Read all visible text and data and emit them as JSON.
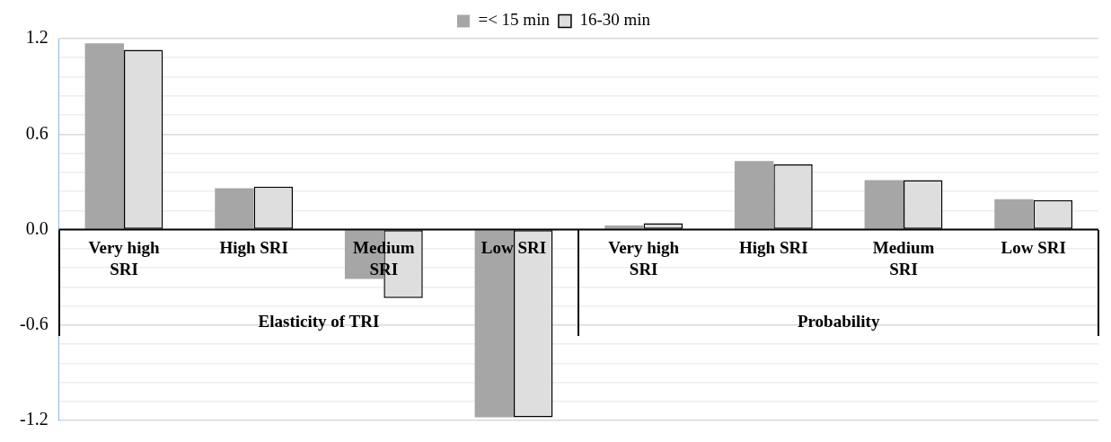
{
  "chart_data": {
    "type": "bar",
    "categories": [
      "Very high SRI",
      "High SRI",
      "Medium SRI",
      "Low SRI",
      "Very high SRI",
      "High SRI",
      "Medium SRI",
      "Low SRI"
    ],
    "series": [
      {
        "name": "=< 15 min",
        "color": "#a6a6a6",
        "values": [
          1.17,
          0.26,
          -0.31,
          -1.18,
          0.025,
          0.43,
          0.31,
          0.19
        ]
      },
      {
        "name": "16-30 min",
        "color": "#dedede",
        "values": [
          1.13,
          0.27,
          -0.43,
          -1.18,
          0.04,
          0.41,
          0.31,
          0.185
        ]
      }
    ],
    "annotations": [
      "Elasticity of TRI",
      "Probability"
    ],
    "ylim": [
      -1.2,
      1.2
    ],
    "yticks": [
      -1.2,
      {
        "value": -1.08,
        "label": null
      },
      {
        "value": -0.96,
        "label": null
      },
      {
        "value": -0.84,
        "label": null
      },
      {
        "value": -0.72,
        "label": null
      },
      -0.6,
      {
        "value": -0.48,
        "label": null
      },
      {
        "value": -0.36,
        "label": null
      },
      {
        "value": -0.24,
        "label": null
      },
      {
        "value": -0.12,
        "label": null
      },
      {
        "value": 0,
        "label": "0.0"
      },
      {
        "value": 0.12,
        "label": null
      },
      {
        "value": 0.24,
        "label": null
      },
      {
        "value": 0.36,
        "label": null
      },
      {
        "value": 0.48,
        "label": null
      },
      0.6,
      {
        "value": 0.72,
        "label": null
      },
      {
        "value": 0.84,
        "label": null
      },
      {
        "value": 0.96,
        "label": null
      },
      {
        "value": 1.08,
        "label": null
      },
      1.2
    ],
    "grid": "y",
    "legend": "top"
  }
}
